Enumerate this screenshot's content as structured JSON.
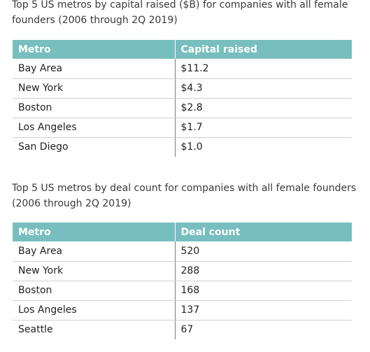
{
  "table1": {
    "caption": "Top 5 US metros by capital raised ($B) for companies with all female founders (2006 through 2Q 2019)",
    "headers": [
      "Metro",
      "Capital raised"
    ],
    "rows": [
      [
        "Bay Area",
        "$11.2"
      ],
      [
        "New York",
        "$4.3"
      ],
      [
        "Boston",
        "$2.8"
      ],
      [
        "Los Angeles",
        "$1.7"
      ],
      [
        "San Diego",
        "$1.0"
      ]
    ]
  },
  "table2": {
    "caption": "Top 5 US metros by deal count for companies with all female founders (2006 through 2Q 2019)",
    "headers": [
      "Metro",
      "Deal count"
    ],
    "rows": [
      [
        "Bay Area",
        "520"
      ],
      [
        "New York",
        "288"
      ],
      [
        "Boston",
        "168"
      ],
      [
        "Los Angeles",
        "137"
      ],
      [
        "Seattle",
        "67"
      ]
    ]
  },
  "colors": {
    "header_bg": "#78bebe",
    "header_text": "#ffffff",
    "row_divider": "#d0d0d0"
  }
}
